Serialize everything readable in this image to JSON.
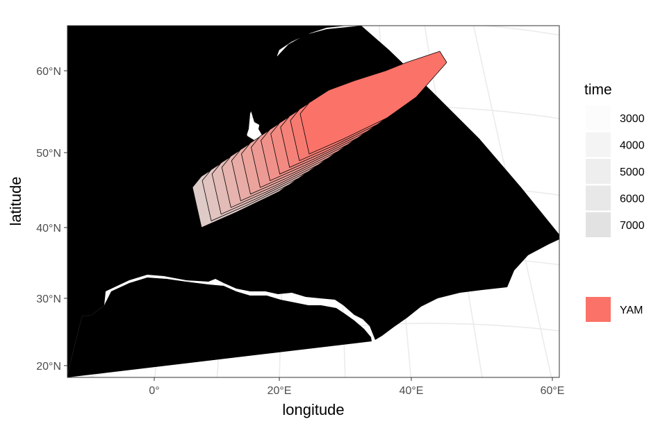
{
  "map": {
    "xlabel": "longitude",
    "ylabel": "latitude",
    "x_ticks": [
      "0°",
      "20°E",
      "40°E",
      "60°E"
    ],
    "y_ticks": [
      "20°N",
      "30°N",
      "40°N",
      "50°N",
      "60°N"
    ],
    "land_color": "#d3d3d3",
    "grid_color": "#ebebeb",
    "region_color": "#fa7268",
    "region_name": "YAM",
    "legend": {
      "title": "time",
      "time_levels": [
        "3000",
        "4000",
        "5000",
        "6000",
        "7000"
      ],
      "region_label": "YAM"
    }
  }
}
